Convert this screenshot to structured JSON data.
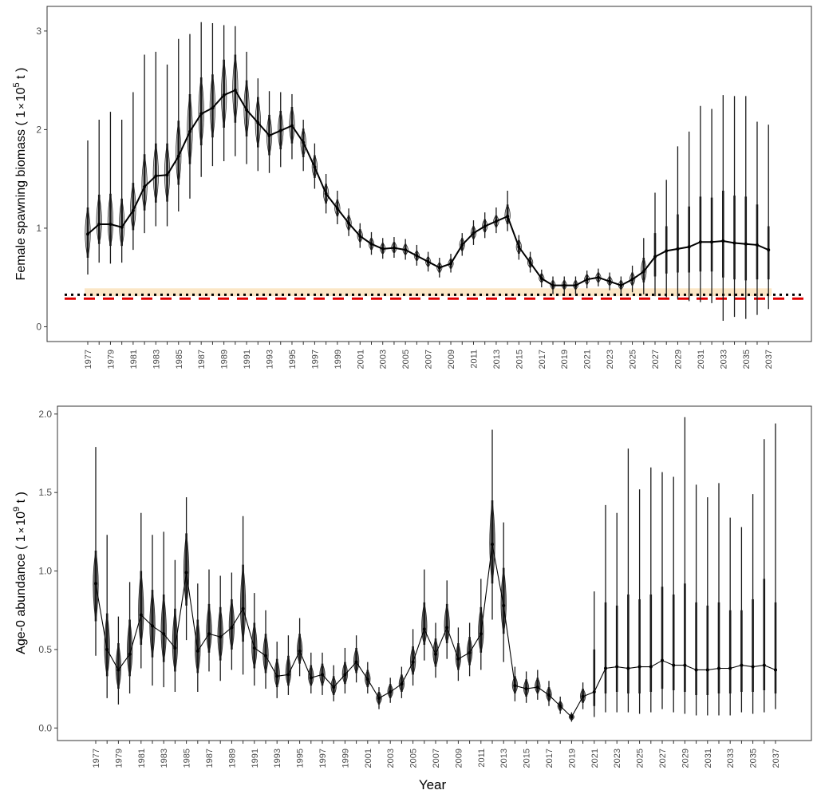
{
  "colors": {
    "line": "#000000",
    "interval": "#1a1a1a",
    "violin_fill_top": "#bdbdbd",
    "violin_fill_bottom": "#5a5a5a",
    "reference_band": "#fbe6c6",
    "limit_line": "#e00000",
    "target_line": "#000000"
  },
  "xlabel": "Year",
  "chart_data": [
    {
      "type": "line",
      "ylabel_prefix": "Female spawning biomass ( 1",
      "ylabel_times": "×",
      "ylabel_base": "10",
      "ylabel_exp": "5",
      "ylabel_suffix": " t )",
      "ylim": [
        -0.15,
        3.25
      ],
      "yticks": [
        0,
        1,
        2,
        3
      ],
      "ytick_labels": [
        "0",
        "1",
        "2",
        "3"
      ],
      "grid": false,
      "x": [
        1977,
        1978,
        1979,
        1980,
        1981,
        1982,
        1983,
        1984,
        1985,
        1986,
        1987,
        1988,
        1989,
        1990,
        1991,
        1992,
        1993,
        1994,
        1995,
        1996,
        1997,
        1998,
        1999,
        2000,
        2001,
        2002,
        2003,
        2004,
        2005,
        2006,
        2007,
        2008,
        2009,
        2010,
        2011,
        2012,
        2013,
        2014,
        2015,
        2016,
        2017,
        2018,
        2019,
        2020,
        2021,
        2022,
        2023,
        2024,
        2025,
        2026,
        2027,
        2028,
        2029,
        2030,
        2031,
        2032,
        2033,
        2034,
        2035,
        2036,
        2037
      ],
      "x_tick_labels": [
        "1977",
        "1979",
        "1981",
        "1983",
        "1985",
        "1987",
        "1989",
        "1991",
        "1993",
        "1995",
        "1997",
        "1999",
        "2001",
        "2003",
        "2005",
        "2007",
        "2009",
        "2011",
        "2013",
        "2015",
        "2017",
        "2019",
        "2021",
        "2023",
        "2025",
        "2027",
        "2029",
        "2031",
        "2033",
        "2035",
        "2037"
      ],
      "median": [
        0.94,
        1.04,
        1.04,
        1.01,
        1.18,
        1.42,
        1.53,
        1.54,
        1.73,
        1.98,
        2.16,
        2.22,
        2.35,
        2.4,
        2.2,
        2.07,
        1.94,
        1.99,
        2.04,
        1.87,
        1.62,
        1.35,
        1.2,
        1.05,
        0.92,
        0.84,
        0.79,
        0.8,
        0.78,
        0.72,
        0.66,
        0.6,
        0.64,
        0.83,
        0.95,
        1.02,
        1.07,
        1.12,
        0.81,
        0.65,
        0.49,
        0.42,
        0.42,
        0.42,
        0.48,
        0.5,
        0.46,
        0.42,
        0.48,
        0.56,
        0.71,
        0.77,
        0.79,
        0.81,
        0.86,
        0.86,
        0.87,
        0.85,
        0.84,
        0.83,
        0.78
      ],
      "outer_lo": [
        0.53,
        0.65,
        0.64,
        0.65,
        0.78,
        0.95,
        1.02,
        1.02,
        1.17,
        1.3,
        1.52,
        1.63,
        1.68,
        1.73,
        1.65,
        1.58,
        1.56,
        1.62,
        1.7,
        1.58,
        1.4,
        1.15,
        1.04,
        0.92,
        0.8,
        0.73,
        0.69,
        0.7,
        0.68,
        0.62,
        0.56,
        0.5,
        0.55,
        0.72,
        0.83,
        0.9,
        0.95,
        0.97,
        0.68,
        0.55,
        0.4,
        0.33,
        0.33,
        0.33,
        0.39,
        0.41,
        0.37,
        0.33,
        0.35,
        0.33,
        0.31,
        0.3,
        0.28,
        0.26,
        0.25,
        0.24,
        0.06,
        0.1,
        0.08,
        0.12,
        0.18
      ],
      "outer_hi": [
        1.89,
        2.1,
        2.18,
        2.1,
        2.38,
        2.76,
        2.79,
        2.66,
        2.92,
        2.97,
        3.09,
        3.08,
        3.06,
        3.05,
        2.79,
        2.52,
        2.39,
        2.38,
        2.36,
        2.1,
        1.86,
        1.55,
        1.38,
        1.2,
        1.05,
        0.96,
        0.9,
        0.91,
        0.89,
        0.83,
        0.76,
        0.7,
        0.74,
        0.95,
        1.08,
        1.16,
        1.21,
        1.38,
        0.93,
        0.76,
        0.58,
        0.51,
        0.51,
        0.51,
        0.57,
        0.59,
        0.55,
        0.51,
        0.62,
        0.9,
        1.36,
        1.49,
        1.83,
        1.98,
        2.24,
        2.21,
        2.35,
        2.34,
        2.34,
        2.08,
        2.05
      ],
      "inner_lo": [
        0.7,
        0.84,
        0.82,
        0.82,
        0.98,
        1.18,
        1.26,
        1.27,
        1.44,
        1.65,
        1.84,
        1.92,
        2.02,
        2.07,
        1.93,
        1.82,
        1.74,
        1.8,
        1.86,
        1.72,
        1.51,
        1.25,
        1.12,
        0.98,
        0.86,
        0.78,
        0.74,
        0.75,
        0.73,
        0.67,
        0.61,
        0.55,
        0.59,
        0.77,
        0.89,
        0.96,
        1.01,
        1.04,
        0.74,
        0.6,
        0.45,
        0.38,
        0.38,
        0.38,
        0.43,
        0.45,
        0.42,
        0.38,
        0.42,
        0.45,
        0.51,
        0.54,
        0.55,
        0.55,
        0.56,
        0.56,
        0.5,
        0.48,
        0.47,
        0.48,
        0.48
      ],
      "inner_hi": [
        1.21,
        1.34,
        1.35,
        1.3,
        1.46,
        1.75,
        1.86,
        1.86,
        2.09,
        2.36,
        2.53,
        2.56,
        2.71,
        2.76,
        2.5,
        2.33,
        2.15,
        2.19,
        2.23,
        2.01,
        1.74,
        1.45,
        1.29,
        1.13,
        0.99,
        0.9,
        0.85,
        0.86,
        0.84,
        0.77,
        0.71,
        0.65,
        0.69,
        0.9,
        1.02,
        1.09,
        1.13,
        1.24,
        0.88,
        0.71,
        0.54,
        0.47,
        0.47,
        0.47,
        0.53,
        0.55,
        0.51,
        0.47,
        0.55,
        0.7,
        0.95,
        1.02,
        1.14,
        1.22,
        1.32,
        1.31,
        1.38,
        1.33,
        1.32,
        1.24,
        1.02
      ],
      "violin_start_year": 1977,
      "violin_end_year": 2026,
      "violin_half_width_years": 0.3,
      "reference_band": [
        0.31,
        0.39
      ],
      "target_level": 0.325,
      "limit_level": 0.285
    },
    {
      "type": "line",
      "ylabel_prefix": "Age-0 abundance ( 1",
      "ylabel_times": "×",
      "ylabel_base": "10",
      "ylabel_exp": "9",
      "ylabel_suffix": " t )",
      "ylim": [
        -0.08,
        2.05
      ],
      "yticks": [
        0.0,
        0.5,
        1.0,
        1.5,
        2.0
      ],
      "ytick_labels": [
        "0.0",
        "0.5",
        "1.0",
        "1.5",
        "2.0"
      ],
      "grid": false,
      "x": [
        1977,
        1978,
        1979,
        1980,
        1981,
        1982,
        1983,
        1984,
        1985,
        1986,
        1987,
        1988,
        1989,
        1990,
        1991,
        1992,
        1993,
        1994,
        1995,
        1996,
        1997,
        1998,
        1999,
        2000,
        2001,
        2002,
        2003,
        2004,
        2005,
        2006,
        2007,
        2008,
        2009,
        2010,
        2011,
        2012,
        2013,
        2014,
        2015,
        2016,
        2017,
        2018,
        2019,
        2020,
        2021,
        2022,
        2023,
        2024,
        2025,
        2026,
        2027,
        2028,
        2029,
        2030,
        2031,
        2032,
        2033,
        2034,
        2035,
        2036,
        2037
      ],
      "x_tick_labels": [
        "1977",
        "1979",
        "1981",
        "1983",
        "1985",
        "1987",
        "1989",
        "1991",
        "1993",
        "1995",
        "1997",
        "1999",
        "2001",
        "2003",
        "2005",
        "2007",
        "2009",
        "2011",
        "2013",
        "2015",
        "2017",
        "2019",
        "2021",
        "2023",
        "2025",
        "2027",
        "2029",
        "2031",
        "2033",
        "2035",
        "2037"
      ],
      "median": [
        0.92,
        0.5,
        0.37,
        0.47,
        0.72,
        0.65,
        0.6,
        0.51,
        0.99,
        0.49,
        0.6,
        0.58,
        0.64,
        0.76,
        0.51,
        0.46,
        0.33,
        0.34,
        0.49,
        0.32,
        0.34,
        0.26,
        0.34,
        0.42,
        0.31,
        0.19,
        0.23,
        0.28,
        0.42,
        0.63,
        0.47,
        0.64,
        0.44,
        0.48,
        0.6,
        1.17,
        0.78,
        0.27,
        0.25,
        0.26,
        0.21,
        0.14,
        0.07,
        0.2,
        0.23,
        0.38,
        0.39,
        0.38,
        0.39,
        0.39,
        0.43,
        0.4,
        0.4,
        0.37,
        0.37,
        0.38,
        0.38,
        0.4,
        0.39,
        0.4,
        0.37
      ],
      "outer_lo": [
        0.46,
        0.19,
        0.15,
        0.22,
        0.38,
        0.27,
        0.26,
        0.23,
        0.56,
        0.23,
        0.36,
        0.3,
        0.37,
        0.34,
        0.27,
        0.25,
        0.19,
        0.21,
        0.33,
        0.22,
        0.21,
        0.17,
        0.22,
        0.29,
        0.22,
        0.12,
        0.16,
        0.19,
        0.27,
        0.43,
        0.32,
        0.44,
        0.3,
        0.33,
        0.37,
        0.69,
        0.42,
        0.17,
        0.16,
        0.18,
        0.14,
        0.09,
        0.04,
        0.12,
        0.07,
        0.1,
        0.1,
        0.1,
        0.09,
        0.1,
        0.12,
        0.1,
        0.09,
        0.08,
        0.08,
        0.08,
        0.08,
        0.1,
        0.09,
        0.1,
        0.12
      ],
      "outer_hi": [
        1.79,
        1.23,
        0.71,
        0.93,
        1.37,
        1.23,
        1.25,
        1.07,
        1.47,
        0.92,
        1.01,
        0.97,
        0.99,
        1.35,
        0.86,
        0.75,
        0.55,
        0.59,
        0.7,
        0.48,
        0.48,
        0.4,
        0.51,
        0.59,
        0.42,
        0.26,
        0.32,
        0.39,
        0.63,
        1.01,
        0.67,
        0.94,
        0.64,
        0.67,
        0.95,
        1.9,
        1.31,
        0.39,
        0.36,
        0.37,
        0.3,
        0.2,
        0.1,
        0.29,
        0.87,
        1.42,
        1.37,
        1.78,
        1.52,
        1.66,
        1.63,
        1.6,
        1.98,
        1.55,
        1.47,
        1.56,
        1.34,
        1.28,
        1.49,
        1.84,
        1.94
      ],
      "inner_lo": [
        0.68,
        0.33,
        0.25,
        0.33,
        0.53,
        0.45,
        0.42,
        0.36,
        0.78,
        0.35,
        0.48,
        0.43,
        0.5,
        0.55,
        0.38,
        0.35,
        0.26,
        0.27,
        0.41,
        0.27,
        0.27,
        0.21,
        0.28,
        0.35,
        0.26,
        0.15,
        0.19,
        0.23,
        0.34,
        0.53,
        0.39,
        0.54,
        0.37,
        0.4,
        0.48,
        0.92,
        0.6,
        0.22,
        0.2,
        0.22,
        0.17,
        0.11,
        0.05,
        0.16,
        0.14,
        0.22,
        0.23,
        0.22,
        0.22,
        0.23,
        0.25,
        0.24,
        0.23,
        0.21,
        0.21,
        0.22,
        0.22,
        0.23,
        0.23,
        0.24,
        0.22
      ],
      "inner_hi": [
        1.13,
        0.73,
        0.54,
        0.69,
        1.0,
        0.88,
        0.85,
        0.76,
        1.24,
        0.69,
        0.79,
        0.77,
        0.82,
        1.04,
        0.67,
        0.6,
        0.44,
        0.46,
        0.6,
        0.4,
        0.41,
        0.33,
        0.42,
        0.51,
        0.37,
        0.23,
        0.28,
        0.34,
        0.52,
        0.8,
        0.57,
        0.79,
        0.54,
        0.58,
        0.77,
        1.45,
        1.02,
        0.33,
        0.31,
        0.32,
        0.26,
        0.17,
        0.09,
        0.25,
        0.5,
        0.8,
        0.78,
        0.85,
        0.82,
        0.85,
        0.9,
        0.85,
        0.92,
        0.8,
        0.78,
        0.8,
        0.75,
        0.75,
        0.82,
        0.95,
        0.8
      ],
      "violin_start_year": 1977,
      "violin_end_year": 2020,
      "violin_half_width_years": 0.3
    }
  ]
}
